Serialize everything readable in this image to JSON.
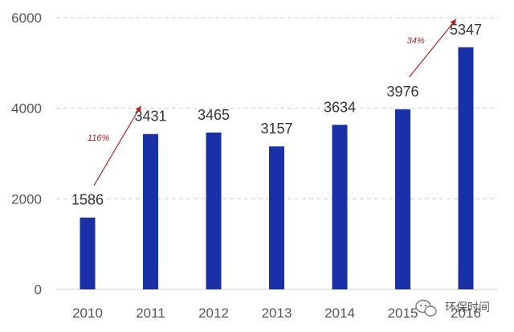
{
  "chart_data": {
    "type": "bar",
    "title": "",
    "xlabel": "",
    "ylabel": "",
    "categories": [
      "2010",
      "2011",
      "2012",
      "2013",
      "2014",
      "2015",
      "2016"
    ],
    "values": [
      1586,
      3431,
      3465,
      3157,
      3634,
      3976,
      5347
    ],
    "data_labels": [
      "1586",
      "3431",
      "3465",
      "3157",
      "3634",
      "3976",
      "5347"
    ],
    "ylim": [
      0,
      6000
    ],
    "yticks": [
      0,
      2000,
      4000,
      6000
    ],
    "ytick_labels": [
      "0",
      "2000",
      "4000",
      "6000"
    ],
    "grid": "horizontal dashed",
    "bar_color": "#1a30a8",
    "annotations": [
      {
        "text": "116%",
        "from_index": 0,
        "to_index": 1,
        "color": "#b22222"
      },
      {
        "text": "34%",
        "from_index": 5,
        "to_index": 6,
        "color": "#b22222"
      }
    ]
  },
  "watermark": {
    "text": "环保时间",
    "icon": "wechat-icon"
  }
}
